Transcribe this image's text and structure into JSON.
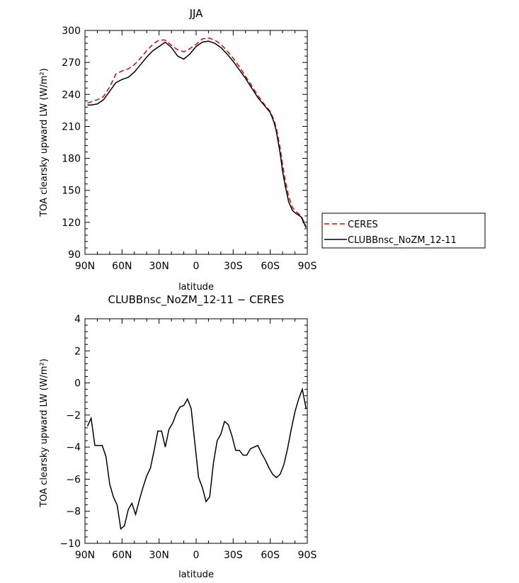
{
  "chart_data": [
    {
      "type": "line",
      "title": "JJA",
      "xlabel": "latitude",
      "ylabel": "TOA clearsky upward LW (W/m²)",
      "x_tick_labels": [
        "90N",
        "60N",
        "30N",
        "0",
        "30S",
        "60S",
        "90S"
      ],
      "x_ticks": [
        90,
        60,
        30,
        0,
        -30,
        -60,
        -90
      ],
      "xlim": [
        90,
        -90
      ],
      "ylim": [
        90,
        300
      ],
      "y_ticks": [
        90,
        120,
        150,
        180,
        210,
        240,
        270,
        300
      ],
      "grid": false,
      "legend_position": "right",
      "x": [
        88,
        85,
        80,
        75,
        70,
        65,
        60,
        55,
        50,
        45,
        40,
        35,
        30,
        25,
        20,
        15,
        10,
        5,
        0,
        -5,
        -10,
        -15,
        -20,
        -25,
        -30,
        -35,
        -40,
        -45,
        -50,
        -55,
        -60,
        -63,
        -65,
        -68,
        -70,
        -72,
        -75,
        -78,
        -80,
        -85,
        -89
      ],
      "series": [
        {
          "name": "CERES",
          "color": "#dd0000",
          "dash": "dashed",
          "values": [
            232,
            233,
            235,
            238,
            247,
            259,
            262,
            264,
            268,
            274,
            281,
            287,
            291,
            291,
            286,
            282,
            280,
            283,
            287,
            292,
            293,
            291,
            287,
            281,
            274,
            266,
            257,
            248,
            239,
            231,
            224,
            216,
            208,
            190,
            174,
            160,
            144,
            134,
            131,
            126,
            116
          ]
        },
        {
          "name": "CLUBBnsc_NoZM_12-11",
          "color": "#000000",
          "dash": "solid",
          "values": [
            230,
            230,
            231,
            235,
            243,
            251,
            254,
            256,
            261,
            268,
            275,
            281,
            285,
            289,
            284,
            276,
            273,
            278,
            285,
            289,
            290,
            288,
            284,
            278,
            271,
            263,
            255,
            246,
            237,
            230,
            223,
            214,
            205,
            185,
            168,
            155,
            139,
            131,
            129,
            125,
            115
          ]
        }
      ]
    },
    {
      "type": "line",
      "title": "CLUBBnsc_NoZM_12-11 − CERES",
      "xlabel": "latitude",
      "ylabel": "TOA clearsky upward LW (W/m²)",
      "x_tick_labels": [
        "90N",
        "60N",
        "30N",
        "0",
        "30S",
        "60S",
        "90S"
      ],
      "x_ticks": [
        90,
        60,
        30,
        0,
        -30,
        -60,
        -90
      ],
      "xlim": [
        90,
        -90
      ],
      "ylim": [
        -10,
        4
      ],
      "y_ticks": [
        -10,
        -8,
        -6,
        -4,
        -2,
        0,
        2,
        4
      ],
      "grid": false,
      "series": [
        {
          "name": "",
          "color": "#000000",
          "x": [
            88,
            85,
            82,
            79,
            76,
            73,
            70,
            67,
            64,
            61,
            58,
            55,
            52,
            49,
            46,
            43,
            40,
            37,
            34,
            31,
            28,
            25,
            22,
            19,
            16,
            13,
            10,
            7,
            4,
            1,
            -2,
            -5,
            -8,
            -11,
            -14,
            -17,
            -20,
            -23,
            -26,
            -29,
            -32,
            -35,
            -38,
            -41,
            -44,
            -47,
            -50,
            -53,
            -56,
            -59,
            -62,
            -65,
            -68,
            -71,
            -74,
            -77,
            -80,
            -83,
            -86,
            -89
          ],
          "values": [
            -2.7,
            -2.2,
            -3.9,
            -3.9,
            -3.9,
            -4.6,
            -6.3,
            -7.1,
            -7.6,
            -9.1,
            -8.9,
            -7.9,
            -7.5,
            -8.2,
            -7.3,
            -6.5,
            -5.8,
            -5.3,
            -4.2,
            -3.0,
            -3.0,
            -4.0,
            -2.9,
            -2.5,
            -1.9,
            -1.5,
            -1.4,
            -1.0,
            -1.6,
            -3.8,
            -5.9,
            -6.5,
            -7.4,
            -7.1,
            -5.0,
            -3.6,
            -3.2,
            -2.4,
            -2.6,
            -3.3,
            -4.2,
            -4.2,
            -4.5,
            -4.5,
            -4.1,
            -4.0,
            -3.9,
            -4.4,
            -4.8,
            -5.3,
            -5.7,
            -5.9,
            -5.7,
            -5.1,
            -4.1,
            -2.9,
            -1.8,
            -1.0,
            -0.4,
            -1.6
          ]
        }
      ]
    }
  ]
}
